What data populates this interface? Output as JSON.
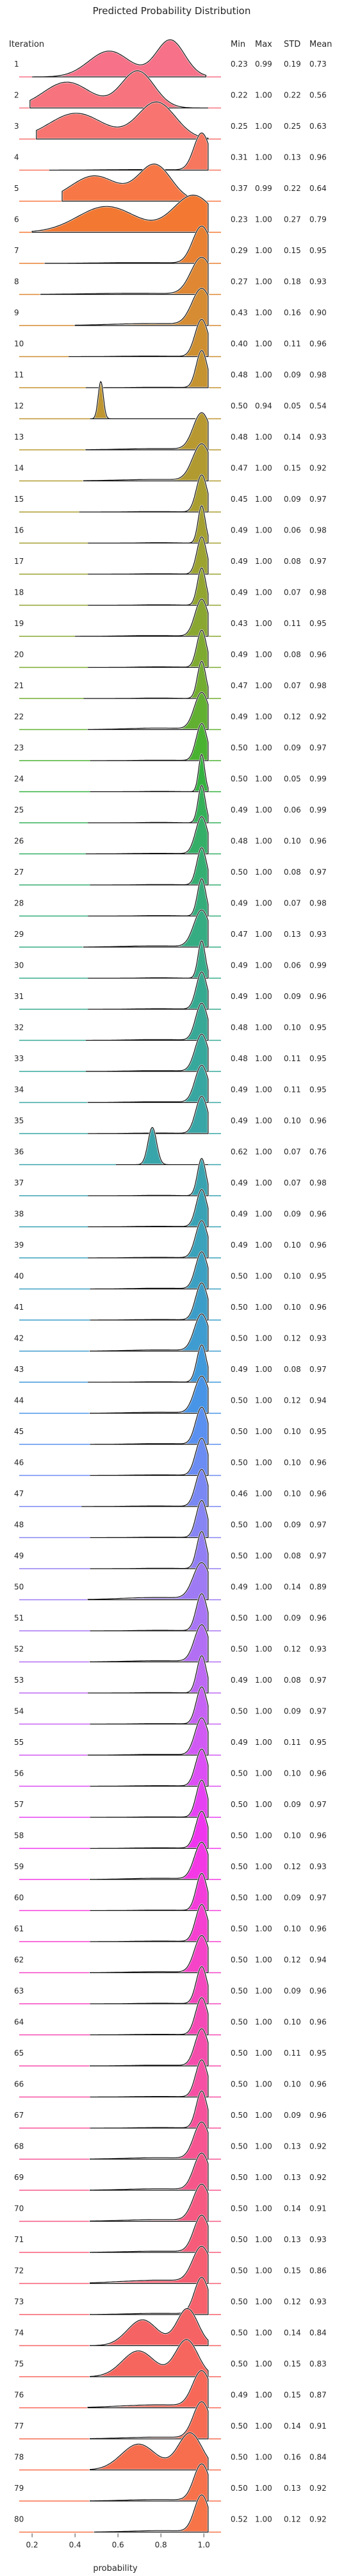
{
  "chart_data": {
    "type": "ridgeline",
    "title": "Predicted Probability Distribution",
    "row_header": "Iteration",
    "stat_headers": [
      "Min",
      "Max",
      "STD",
      "Mean"
    ],
    "xlabel": "probability",
    "xlim": [
      0.14,
      1.08
    ],
    "xticks": [
      {
        "v": 0.2,
        "label": "0.2"
      },
      {
        "v": 0.4,
        "label": "0.4"
      },
      {
        "v": 0.6,
        "label": "0.6"
      },
      {
        "v": 0.8,
        "label": "0.8"
      },
      {
        "v": 1.0,
        "label": "1.0"
      }
    ],
    "grid": false,
    "rows": [
      {
        "iteration": "1",
        "min": "0.23",
        "max": "0.99",
        "std": "0.19",
        "mean": "0.73",
        "color": "#f77189"
      },
      {
        "iteration": "2",
        "min": "0.22",
        "max": "1.00",
        "std": "0.22",
        "mean": "0.56",
        "color": "#f7737e"
      },
      {
        "iteration": "3",
        "min": "0.25",
        "max": "1.00",
        "std": "0.25",
        "mean": "0.63",
        "color": "#f77470"
      },
      {
        "iteration": "4",
        "min": "0.31",
        "max": "1.00",
        "std": "0.13",
        "mean": "0.96",
        "color": "#f7765e"
      },
      {
        "iteration": "5",
        "min": "0.37",
        "max": "0.99",
        "std": "0.22",
        "mean": "0.64",
        "color": "#f77846"
      },
      {
        "iteration": "6",
        "min": "0.23",
        "max": "1.00",
        "std": "0.27",
        "mean": "0.79",
        "color": "#f37932"
      },
      {
        "iteration": "7",
        "min": "0.29",
        "max": "1.00",
        "std": "0.15",
        "mean": "0.95",
        "color": "#e98132"
      },
      {
        "iteration": "8",
        "min": "0.27",
        "max": "1.00",
        "std": "0.18",
        "mean": "0.93",
        "color": "#df8732"
      },
      {
        "iteration": "9",
        "min": "0.43",
        "max": "1.00",
        "std": "0.16",
        "mean": "0.90",
        "color": "#d68c32"
      },
      {
        "iteration": "10",
        "min": "0.40",
        "max": "1.00",
        "std": "0.11",
        "mean": "0.96",
        "color": "#ce8f31"
      },
      {
        "iteration": "11",
        "min": "0.48",
        "max": "1.00",
        "std": "0.09",
        "mean": "0.98",
        "color": "#c69331"
      },
      {
        "iteration": "12",
        "min": "0.50",
        "max": "0.94",
        "std": "0.05",
        "mean": "0.54",
        "color": "#bf9631"
      },
      {
        "iteration": "13",
        "min": "0.48",
        "max": "1.00",
        "std": "0.14",
        "mean": "0.93",
        "color": "#b89931"
      },
      {
        "iteration": "14",
        "min": "0.47",
        "max": "1.00",
        "std": "0.15",
        "mean": "0.92",
        "color": "#b19b31"
      },
      {
        "iteration": "15",
        "min": "0.45",
        "max": "1.00",
        "std": "0.09",
        "mean": "0.97",
        "color": "#aa9e31"
      },
      {
        "iteration": "16",
        "min": "0.49",
        "max": "1.00",
        "std": "0.06",
        "mean": "0.98",
        "color": "#a3a031"
      },
      {
        "iteration": "17",
        "min": "0.49",
        "max": "1.00",
        "std": "0.08",
        "mean": "0.97",
        "color": "#9ca331"
      },
      {
        "iteration": "18",
        "min": "0.49",
        "max": "1.00",
        "std": "0.07",
        "mean": "0.98",
        "color": "#93a531"
      },
      {
        "iteration": "19",
        "min": "0.43",
        "max": "1.00",
        "std": "0.11",
        "mean": "0.95",
        "color": "#8aa731"
      },
      {
        "iteration": "20",
        "min": "0.49",
        "max": "1.00",
        "std": "0.08",
        "mean": "0.96",
        "color": "#7faa31"
      },
      {
        "iteration": "21",
        "min": "0.47",
        "max": "1.00",
        "std": "0.07",
        "mean": "0.98",
        "color": "#72ad31"
      },
      {
        "iteration": "22",
        "min": "0.49",
        "max": "1.00",
        "std": "0.12",
        "mean": "0.92",
        "color": "#61b031"
      },
      {
        "iteration": "23",
        "min": "0.50",
        "max": "1.00",
        "std": "0.09",
        "mean": "0.97",
        "color": "#4ab231"
      },
      {
        "iteration": "24",
        "min": "0.50",
        "max": "1.00",
        "std": "0.05",
        "mean": "0.99",
        "color": "#33b23f"
      },
      {
        "iteration": "25",
        "min": "0.49",
        "max": "1.00",
        "std": "0.06",
        "mean": "0.99",
        "color": "#34b158"
      },
      {
        "iteration": "26",
        "min": "0.48",
        "max": "1.00",
        "std": "0.10",
        "mean": "0.96",
        "color": "#35af67"
      },
      {
        "iteration": "27",
        "min": "0.50",
        "max": "1.00",
        "std": "0.08",
        "mean": "0.97",
        "color": "#35ae72"
      },
      {
        "iteration": "28",
        "min": "0.49",
        "max": "1.00",
        "std": "0.07",
        "mean": "0.98",
        "color": "#35ad7b"
      },
      {
        "iteration": "29",
        "min": "0.47",
        "max": "1.00",
        "std": "0.13",
        "mean": "0.93",
        "color": "#36ac83"
      },
      {
        "iteration": "30",
        "min": "0.49",
        "max": "1.00",
        "std": "0.06",
        "mean": "0.99",
        "color": "#36ab8a"
      },
      {
        "iteration": "31",
        "min": "0.49",
        "max": "1.00",
        "std": "0.09",
        "mean": "0.96",
        "color": "#36aa90"
      },
      {
        "iteration": "32",
        "min": "0.48",
        "max": "1.00",
        "std": "0.10",
        "mean": "0.95",
        "color": "#37a996"
      },
      {
        "iteration": "33",
        "min": "0.48",
        "max": "1.00",
        "std": "0.11",
        "mean": "0.95",
        "color": "#37a89c"
      },
      {
        "iteration": "34",
        "min": "0.49",
        "max": "1.00",
        "std": "0.11",
        "mean": "0.95",
        "color": "#38a7a1"
      },
      {
        "iteration": "35",
        "min": "0.49",
        "max": "1.00",
        "std": "0.10",
        "mean": "0.96",
        "color": "#38a6a6"
      },
      {
        "iteration": "36",
        "min": "0.62",
        "max": "1.00",
        "std": "0.07",
        "mean": "0.76",
        "color": "#38a5ab"
      },
      {
        "iteration": "37",
        "min": "0.49",
        "max": "1.00",
        "std": "0.07",
        "mean": "0.98",
        "color": "#39a4b0"
      },
      {
        "iteration": "38",
        "min": "0.49",
        "max": "1.00",
        "std": "0.09",
        "mean": "0.96",
        "color": "#39a3b5"
      },
      {
        "iteration": "39",
        "min": "0.49",
        "max": "1.00",
        "std": "0.10",
        "mean": "0.96",
        "color": "#3aa2bb"
      },
      {
        "iteration": "40",
        "min": "0.50",
        "max": "1.00",
        "std": "0.10",
        "mean": "0.95",
        "color": "#3ba0c1"
      },
      {
        "iteration": "41",
        "min": "0.50",
        "max": "1.00",
        "std": "0.10",
        "mean": "0.96",
        "color": "#3c9ec8"
      },
      {
        "iteration": "42",
        "min": "0.50",
        "max": "1.00",
        "std": "0.12",
        "mean": "0.93",
        "color": "#3e9cd0"
      },
      {
        "iteration": "43",
        "min": "0.49",
        "max": "1.00",
        "std": "0.08",
        "mean": "0.97",
        "color": "#4099db"
      },
      {
        "iteration": "44",
        "min": "0.50",
        "max": "1.00",
        "std": "0.12",
        "mean": "0.94",
        "color": "#4895e8"
      },
      {
        "iteration": "45",
        "min": "0.50",
        "max": "1.00",
        "std": "0.10",
        "mean": "0.95",
        "color": "#5a90f0"
      },
      {
        "iteration": "46",
        "min": "0.50",
        "max": "1.00",
        "std": "0.10",
        "mean": "0.96",
        "color": "#6b8cf3"
      },
      {
        "iteration": "47",
        "min": "0.46",
        "max": "1.00",
        "std": "0.10",
        "mean": "0.96",
        "color": "#7a88f4"
      },
      {
        "iteration": "48",
        "min": "0.50",
        "max": "1.00",
        "std": "0.09",
        "mean": "0.97",
        "color": "#8784f4"
      },
      {
        "iteration": "49",
        "min": "0.50",
        "max": "1.00",
        "std": "0.08",
        "mean": "0.97",
        "color": "#937ff4"
      },
      {
        "iteration": "50",
        "min": "0.49",
        "max": "1.00",
        "std": "0.14",
        "mean": "0.89",
        "color": "#9e7af4"
      },
      {
        "iteration": "51",
        "min": "0.50",
        "max": "1.00",
        "std": "0.09",
        "mean": "0.96",
        "color": "#a875f4"
      },
      {
        "iteration": "52",
        "min": "0.50",
        "max": "1.00",
        "std": "0.12",
        "mean": "0.93",
        "color": "#b36ff4"
      },
      {
        "iteration": "53",
        "min": "0.49",
        "max": "1.00",
        "std": "0.08",
        "mean": "0.97",
        "color": "#bd69f4"
      },
      {
        "iteration": "54",
        "min": "0.50",
        "max": "1.00",
        "std": "0.09",
        "mean": "0.97",
        "color": "#c763f4"
      },
      {
        "iteration": "55",
        "min": "0.49",
        "max": "1.00",
        "std": "0.11",
        "mean": "0.95",
        "color": "#d25af4"
      },
      {
        "iteration": "56",
        "min": "0.50",
        "max": "1.00",
        "std": "0.10",
        "mean": "0.96",
        "color": "#dc4ff4"
      },
      {
        "iteration": "57",
        "min": "0.50",
        "max": "1.00",
        "std": "0.09",
        "mean": "0.97",
        "color": "#e642f3"
      },
      {
        "iteration": "58",
        "min": "0.50",
        "max": "1.00",
        "std": "0.10",
        "mean": "0.96",
        "color": "#f035ef"
      },
      {
        "iteration": "59",
        "min": "0.50",
        "max": "1.00",
        "std": "0.12",
        "mean": "0.93",
        "color": "#f438e5"
      },
      {
        "iteration": "60",
        "min": "0.50",
        "max": "1.00",
        "std": "0.09",
        "mean": "0.97",
        "color": "#f43cdb"
      },
      {
        "iteration": "61",
        "min": "0.50",
        "max": "1.00",
        "std": "0.10",
        "mean": "0.96",
        "color": "#f540d1"
      },
      {
        "iteration": "62",
        "min": "0.50",
        "max": "1.00",
        "std": "0.12",
        "mean": "0.94",
        "color": "#f544c8"
      },
      {
        "iteration": "63",
        "min": "0.50",
        "max": "1.00",
        "std": "0.09",
        "mean": "0.96",
        "color": "#f547be"
      },
      {
        "iteration": "64",
        "min": "0.50",
        "max": "1.00",
        "std": "0.10",
        "mean": "0.96",
        "color": "#f54ab5"
      },
      {
        "iteration": "65",
        "min": "0.50",
        "max": "1.00",
        "std": "0.11",
        "mean": "0.95",
        "color": "#f54dac"
      },
      {
        "iteration": "66",
        "min": "0.50",
        "max": "1.00",
        "std": "0.10",
        "mean": "0.96",
        "color": "#f550a3"
      },
      {
        "iteration": "67",
        "min": "0.50",
        "max": "1.00",
        "std": "0.09",
        "mean": "0.96",
        "color": "#f5529b"
      },
      {
        "iteration": "68",
        "min": "0.50",
        "max": "1.00",
        "std": "0.13",
        "mean": "0.92",
        "color": "#f65592"
      },
      {
        "iteration": "69",
        "min": "0.50",
        "max": "1.00",
        "std": "0.13",
        "mean": "0.92",
        "color": "#f6578a"
      },
      {
        "iteration": "70",
        "min": "0.50",
        "max": "1.00",
        "std": "0.14",
        "mean": "0.91",
        "color": "#f65a82"
      },
      {
        "iteration": "71",
        "min": "0.50",
        "max": "1.00",
        "std": "0.13",
        "mean": "0.93",
        "color": "#f65c7a"
      },
      {
        "iteration": "72",
        "min": "0.50",
        "max": "1.00",
        "std": "0.15",
        "mean": "0.86",
        "color": "#f65e72"
      },
      {
        "iteration": "73",
        "min": "0.50",
        "max": "1.00",
        "std": "0.12",
        "mean": "0.93",
        "color": "#f6616b"
      },
      {
        "iteration": "74",
        "min": "0.50",
        "max": "1.00",
        "std": "0.14",
        "mean": "0.84",
        "color": "#f66364"
      },
      {
        "iteration": "75",
        "min": "0.50",
        "max": "1.00",
        "std": "0.15",
        "mean": "0.83",
        "color": "#f7665e"
      },
      {
        "iteration": "76",
        "min": "0.49",
        "max": "1.00",
        "std": "0.15",
        "mean": "0.87",
        "color": "#f76858"
      },
      {
        "iteration": "77",
        "min": "0.50",
        "max": "1.00",
        "std": "0.14",
        "mean": "0.91",
        "color": "#f76b53"
      },
      {
        "iteration": "78",
        "min": "0.50",
        "max": "1.00",
        "std": "0.16",
        "mean": "0.84",
        "color": "#f76e4f"
      },
      {
        "iteration": "79",
        "min": "0.50",
        "max": "1.00",
        "std": "0.13",
        "mean": "0.92",
        "color": "#f7714b"
      },
      {
        "iteration": "80",
        "min": "0.52",
        "max": "1.00",
        "std": "0.12",
        "mean": "0.92",
        "color": "#f77448"
      }
    ]
  }
}
